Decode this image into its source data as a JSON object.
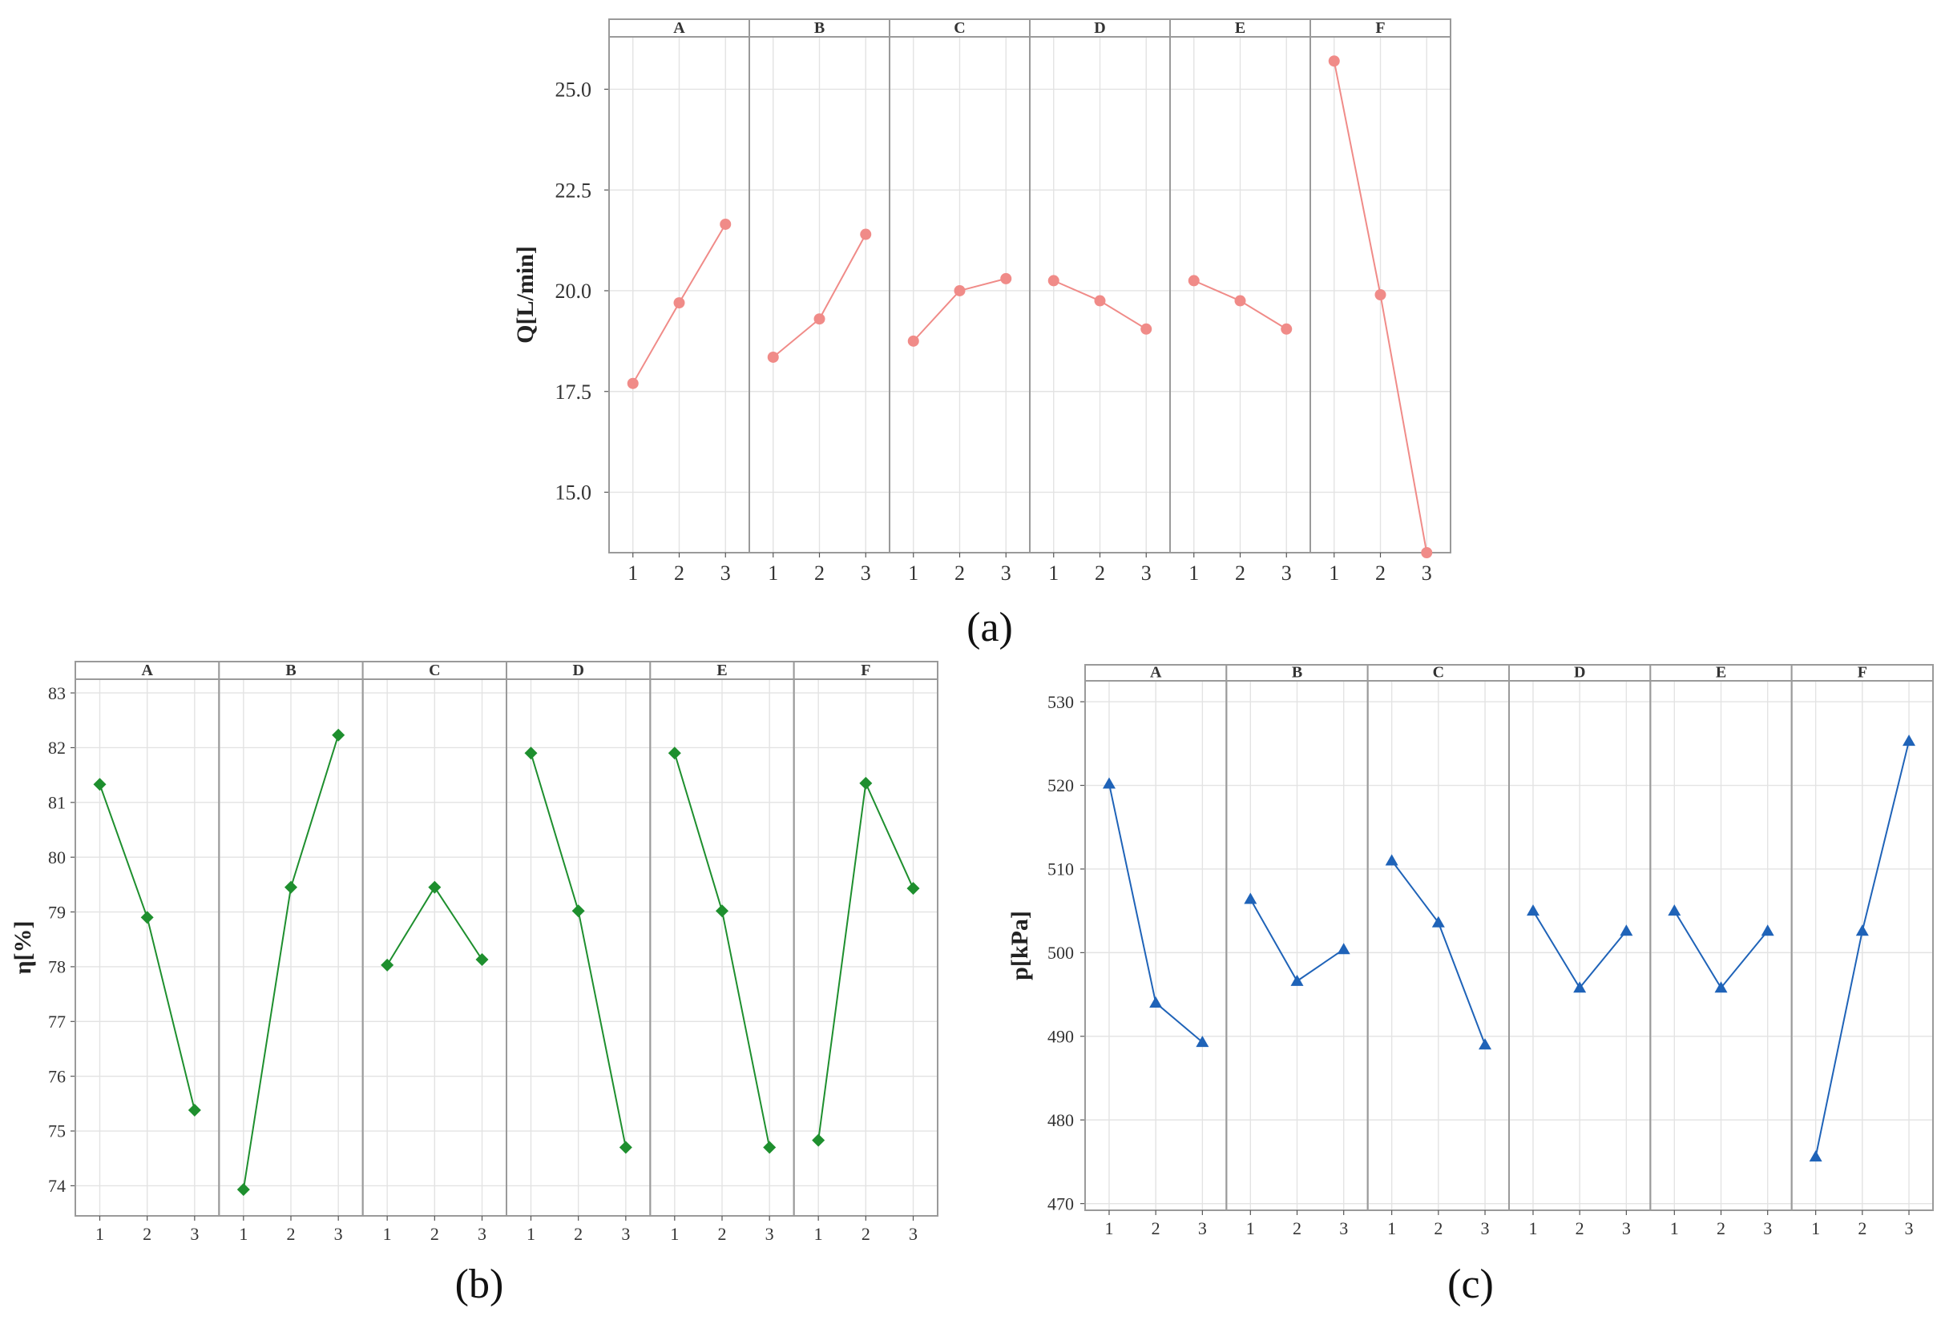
{
  "colors": {
    "a_series": "#f08b88",
    "b_series": "#1e8f2e",
    "c_series": "#1f63b8",
    "panel_border": "#9a9a9a",
    "grid": "#e3e3e3",
    "strip_fill": "#ffffff"
  },
  "chart_data": [
    {
      "id": "a",
      "type": "line",
      "caption": "(a)",
      "ylabel": "Q[L/min]",
      "marker": "circle",
      "color": "#f08b88",
      "ylim": [
        13.5,
        26.3
      ],
      "yticks": [
        15.0,
        17.5,
        20.0,
        22.5,
        25.0
      ],
      "ytick_labels": [
        "15.0",
        "17.5",
        "20.0",
        "22.5",
        "25.0"
      ],
      "x_levels": [
        "1",
        "2",
        "3"
      ],
      "facets": [
        {
          "name": "A",
          "values": [
            17.7,
            19.7,
            21.65
          ]
        },
        {
          "name": "B",
          "values": [
            18.35,
            19.3,
            21.4
          ]
        },
        {
          "name": "C",
          "values": [
            18.75,
            20.0,
            20.3
          ]
        },
        {
          "name": "D",
          "values": [
            20.25,
            19.75,
            19.05
          ]
        },
        {
          "name": "E",
          "values": [
            20.25,
            19.75,
            19.05
          ]
        },
        {
          "name": "F",
          "values": [
            25.7,
            19.9,
            13.5
          ]
        }
      ]
    },
    {
      "id": "b",
      "type": "line",
      "caption": "(b)",
      "ylabel": "η[%]",
      "marker": "diamond",
      "color": "#1e8f2e",
      "ylim": [
        73.45,
        83.25
      ],
      "yticks": [
        74,
        75,
        76,
        77,
        78,
        79,
        80,
        81,
        82,
        83
      ],
      "ytick_labels": [
        "74",
        "75",
        "76",
        "77",
        "78",
        "79",
        "80",
        "81",
        "82",
        "83"
      ],
      "x_levels": [
        "1",
        "2",
        "3"
      ],
      "facets": [
        {
          "name": "A",
          "values": [
            81.33,
            78.9,
            75.38
          ]
        },
        {
          "name": "B",
          "values": [
            73.93,
            79.45,
            82.23
          ]
        },
        {
          "name": "C",
          "values": [
            78.03,
            79.45,
            78.13
          ]
        },
        {
          "name": "D",
          "values": [
            81.9,
            79.02,
            74.7
          ]
        },
        {
          "name": "E",
          "values": [
            81.9,
            79.02,
            74.7
          ]
        },
        {
          "name": "F",
          "values": [
            74.83,
            81.35,
            79.43
          ]
        }
      ]
    },
    {
      "id": "c",
      "type": "line",
      "caption": "(c)",
      "ylabel": "p[kPa]",
      "marker": "triangle",
      "color": "#1f63b8",
      "ylim": [
        469.2,
        532.5
      ],
      "yticks": [
        470,
        480,
        490,
        500,
        510,
        520,
        530
      ],
      "ytick_labels": [
        "470",
        "480",
        "490",
        "500",
        "510",
        "520",
        "530"
      ],
      "x_levels": [
        "1",
        "2",
        "3"
      ],
      "facets": [
        {
          "name": "A",
          "values": [
            520.2,
            494.0,
            489.3
          ]
        },
        {
          "name": "B",
          "values": [
            506.4,
            496.6,
            500.4
          ]
        },
        {
          "name": "C",
          "values": [
            511.0,
            503.6,
            489.0
          ]
        },
        {
          "name": "D",
          "values": [
            505.0,
            495.8,
            502.6
          ]
        },
        {
          "name": "E",
          "values": [
            505.0,
            495.8,
            502.6
          ]
        },
        {
          "name": "F",
          "values": [
            475.6,
            502.6,
            525.3
          ]
        }
      ]
    }
  ]
}
